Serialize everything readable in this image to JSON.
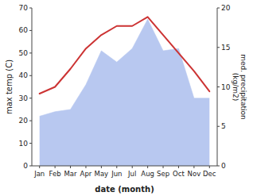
{
  "chart_data": {
    "type": "line",
    "xlabel": "date (month)",
    "ylabel": "max temp (C)",
    "y2label": "med. precipitation\n(kg/m2)",
    "categories": [
      "Jan",
      "Feb",
      "Mar",
      "Apr",
      "May",
      "Jun",
      "Jul",
      "Aug",
      "Sep",
      "Oct",
      "Nov",
      "Dec"
    ],
    "series": [
      {
        "type": "area",
        "color": "#b8c8f0",
        "values": [
          22,
          24,
          25,
          36,
          51,
          46,
          52,
          65,
          51,
          52,
          30,
          30
        ]
      },
      {
        "type": "line",
        "color": "#cc3333",
        "values": [
          32,
          35,
          43,
          52,
          58,
          62,
          62,
          66,
          58,
          50,
          42,
          33
        ]
      }
    ],
    "ylim": [
      0,
      70
    ],
    "yticks": [
      0,
      10,
      20,
      30,
      40,
      50,
      60,
      70
    ],
    "y2lim": [
      0,
      20
    ],
    "y2ticks": [
      0,
      5,
      10,
      15,
      20
    ],
    "grid": false
  }
}
